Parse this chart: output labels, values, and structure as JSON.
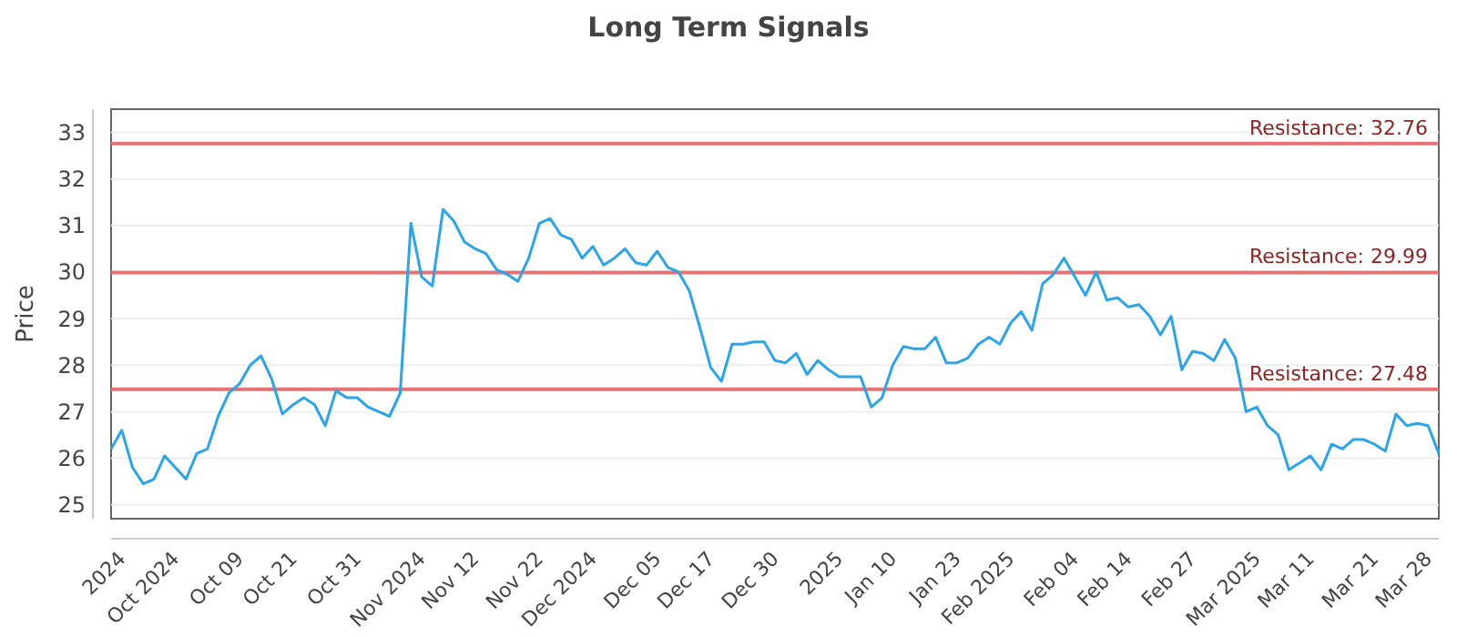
{
  "chart_data": {
    "type": "line",
    "title": "Long Term Signals",
    "ylabel": "Price",
    "categories": [
      null,
      "2024",
      null,
      null,
      null,
      null,
      "Oct 2024",
      null,
      null,
      null,
      null,
      null,
      "Oct 09",
      null,
      null,
      null,
      null,
      "Oct 21",
      null,
      null,
      null,
      null,
      null,
      "Oct 31",
      null,
      null,
      null,
      null,
      null,
      "Nov 2024",
      null,
      null,
      null,
      null,
      "Nov 12",
      null,
      null,
      null,
      null,
      null,
      "Nov 22",
      null,
      null,
      null,
      null,
      "Dec 2024",
      null,
      null,
      null,
      null,
      null,
      "Dec 05",
      null,
      null,
      null,
      null,
      "Dec 17",
      null,
      null,
      null,
      null,
      null,
      "Dec 30",
      null,
      null,
      null,
      null,
      null,
      "2025",
      null,
      null,
      null,
      null,
      "Jan 10",
      null,
      null,
      null,
      null,
      null,
      "Jan 23",
      null,
      null,
      null,
      null,
      "Feb 2025",
      null,
      null,
      null,
      null,
      null,
      "Feb 04",
      null,
      null,
      null,
      null,
      "Feb 14",
      null,
      null,
      null,
      null,
      null,
      "Feb 27",
      null,
      null,
      null,
      null,
      null,
      "Mar 2025",
      null,
      null,
      null,
      null,
      "Mar 11",
      null,
      null,
      null,
      null,
      null,
      "Mar 21",
      null,
      null,
      null,
      null,
      "Mar 28",
      null
    ],
    "series": [
      {
        "color": "#2ba4e9",
        "values": [
          26.2,
          26.6,
          25.8,
          25.45,
          25.55,
          26.05,
          25.8,
          25.55,
          26.1,
          26.2,
          26.9,
          27.4,
          27.6,
          28.0,
          28.2,
          27.7,
          26.95,
          27.15,
          27.3,
          27.15,
          26.7,
          27.45,
          27.3,
          27.3,
          27.1,
          27.0,
          26.9,
          27.4,
          31.05,
          29.9,
          29.7,
          31.35,
          31.1,
          30.65,
          30.5,
          30.4,
          30.05,
          29.95,
          29.8,
          30.3,
          31.05,
          31.15,
          30.8,
          30.7,
          30.3,
          30.55,
          30.15,
          30.3,
          30.5,
          30.2,
          30.15,
          30.45,
          30.1,
          30.0,
          29.6,
          28.8,
          27.95,
          27.65,
          28.45,
          28.45,
          28.5,
          28.5,
          28.1,
          28.05,
          28.25,
          27.8,
          28.1,
          27.9,
          27.75,
          27.75,
          27.75,
          27.1,
          27.3,
          28.0,
          28.4,
          28.35,
          28.35,
          28.6,
          28.05,
          28.05,
          28.15,
          28.45,
          28.6,
          28.45,
          28.9,
          29.15,
          28.75,
          29.75,
          29.95,
          30.3,
          29.9,
          29.5,
          30.0,
          29.4,
          29.45,
          29.25,
          29.3,
          29.05,
          28.65,
          29.05,
          27.9,
          28.3,
          28.25,
          28.1,
          28.55,
          28.15,
          27.0,
          27.1,
          26.7,
          26.5,
          25.75,
          25.9,
          26.05,
          25.75,
          26.3,
          26.2,
          26.4,
          26.4,
          26.3,
          26.15,
          26.95,
          26.7,
          26.75,
          26.7,
          26.1
        ]
      }
    ],
    "ylim": [
      24.7,
      33.5
    ],
    "yticks": [
      25,
      26,
      27,
      28,
      29,
      30,
      31,
      32,
      33
    ],
    "grid": "y",
    "marker": "none",
    "line_style": "solid",
    "ref_lines": [
      {
        "axis": "y",
        "value": 32.76,
        "label": "Resistance: 32.76",
        "color": "#e57373"
      },
      {
        "axis": "y",
        "value": 29.99,
        "label": "Resistance: 29.99",
        "color": "#e57373"
      },
      {
        "axis": "y",
        "value": 27.48,
        "label": "Resistance: 27.48",
        "color": "#e57373"
      }
    ]
  }
}
